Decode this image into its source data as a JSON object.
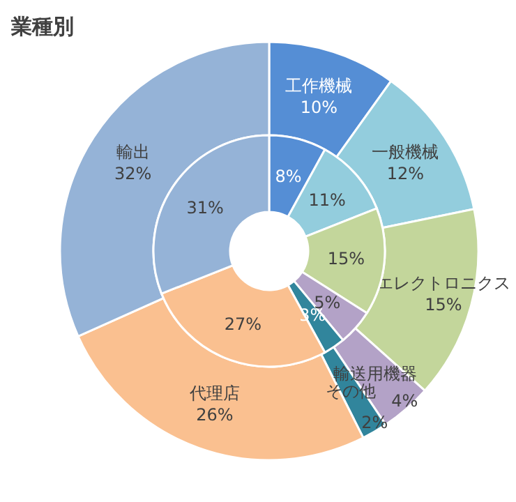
{
  "chart_data": {
    "type": "donut",
    "title": "業種別",
    "categories": [
      "工作機械",
      "一般機械",
      "エレクトロニクス",
      "輸送用機器",
      "その他",
      "代理店",
      "輸出"
    ],
    "colors": [
      "#558ed5",
      "#93cddd",
      "#c3d69b",
      "#b3a2c7",
      "#31859c",
      "#fac090",
      "#95b3d7"
    ],
    "series": [
      {
        "values": [
          10,
          12,
          15,
          4,
          2,
          26,
          32
        ],
        "value_labels": [
          "10%",
          "12%",
          "15%",
          "4%",
          "2%",
          "26%",
          "32%"
        ]
      },
      {
        "values": [
          8,
          11,
          15,
          5,
          3,
          27,
          31
        ],
        "value_labels": [
          "8%",
          "11%",
          "15%",
          "5%",
          "3%",
          "27%",
          "31%"
        ]
      }
    ]
  }
}
